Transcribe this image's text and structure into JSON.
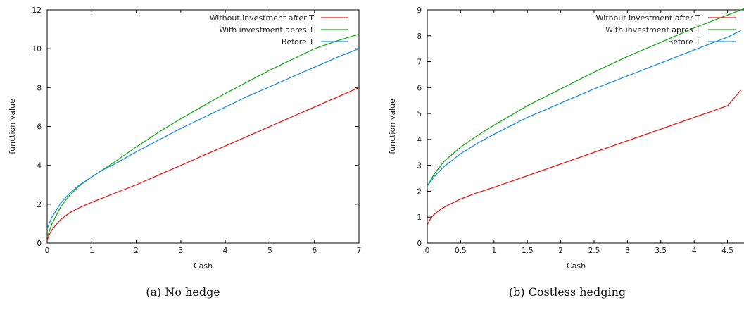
{
  "chart_data": [
    {
      "type": "line",
      "caption": "(a) No hedge",
      "xlabel": "Cash",
      "ylabel": "function value",
      "xlim": [
        0,
        7
      ],
      "ylim": [
        0,
        12
      ],
      "xticks": [
        "0",
        "1",
        "2",
        "3",
        "4",
        "5",
        "6",
        "7"
      ],
      "yticks": [
        "0",
        "2",
        "4",
        "6",
        "8",
        "10",
        "12"
      ],
      "grid": false,
      "legend_position": "top-right",
      "series": [
        {
          "name": "Without  investment after T",
          "color": "#e41a1c",
          "x": [
            0,
            0.05,
            0.1,
            0.2,
            0.3,
            0.5,
            0.7,
            1,
            1.5,
            2,
            2.5,
            3,
            3.5,
            4,
            4.5,
            5,
            5.5,
            6,
            6.5,
            7
          ],
          "y": [
            0.15,
            0.45,
            0.65,
            0.95,
            1.2,
            1.55,
            1.8,
            2.1,
            2.55,
            3.0,
            3.5,
            4.0,
            4.5,
            5.0,
            5.5,
            6.0,
            6.5,
            7.0,
            7.5,
            8.0
          ]
        },
        {
          "name": "With investment apres T",
          "color": "#1aab1a",
          "x": [
            0,
            0.1,
            0.3,
            0.5,
            0.7,
            1,
            1.2,
            1.5,
            2,
            2.5,
            3,
            3.5,
            4,
            4.5,
            5,
            5.5,
            6,
            6.5,
            7
          ],
          "y": [
            0.3,
            0.95,
            1.85,
            2.45,
            2.9,
            3.4,
            3.7,
            4.15,
            4.95,
            5.7,
            6.4,
            7.05,
            7.7,
            8.3,
            8.9,
            9.45,
            10.0,
            10.4,
            10.75
          ]
        },
        {
          "name": "Before T",
          "color": "#1f8fe0",
          "x": [
            0,
            0.1,
            0.3,
            0.5,
            0.7,
            1,
            1.2,
            1.5,
            2,
            2.5,
            3,
            3.5,
            4,
            4.5,
            5,
            5.5,
            6,
            6.5,
            7
          ],
          "y": [
            0.75,
            1.3,
            2.05,
            2.55,
            2.95,
            3.4,
            3.7,
            4.05,
            4.7,
            5.3,
            5.9,
            6.45,
            7.0,
            7.55,
            8.05,
            8.55,
            9.05,
            9.55,
            10.0
          ]
        }
      ]
    },
    {
      "type": "line",
      "caption": "(b) Costless hedging",
      "xlabel": "Cash",
      "ylabel": "function value",
      "xlim": [
        0,
        4.8
      ],
      "ylim": [
        0,
        9
      ],
      "xticks": [
        "0",
        "0.5",
        "1",
        "1.5",
        "2",
        "2.5",
        "3",
        "3.5",
        "4",
        "4.5"
      ],
      "yticks": [
        "0",
        "1",
        "2",
        "3",
        "4",
        "5",
        "6",
        "7",
        "8",
        "9"
      ],
      "grid": false,
      "legend_position": "top-right",
      "series": [
        {
          "name": "Without  investment after T",
          "color": "#e41a1c",
          "x": [
            0,
            0.05,
            0.1,
            0.2,
            0.3,
            0.5,
            0.7,
            1,
            1.5,
            2,
            2.5,
            3,
            3.5,
            4,
            4.5,
            4.7
          ],
          "y": [
            0.7,
            0.95,
            1.1,
            1.3,
            1.45,
            1.7,
            1.9,
            2.15,
            2.6,
            3.05,
            3.5,
            3.95,
            4.4,
            4.85,
            5.3,
            5.9
          ]
        },
        {
          "name": "With investment apres T",
          "color": "#1aab1a",
          "x": [
            0,
            0.1,
            0.25,
            0.5,
            0.75,
            1,
            1.5,
            2,
            2.5,
            3,
            3.5,
            4,
            4.5,
            4.75
          ],
          "y": [
            2.2,
            2.65,
            3.15,
            3.7,
            4.15,
            4.55,
            5.3,
            5.95,
            6.6,
            7.2,
            7.75,
            8.3,
            8.8,
            9.05
          ]
        },
        {
          "name": "Before T",
          "color": "#1f8fe0",
          "x": [
            0,
            0.1,
            0.25,
            0.5,
            0.75,
            1,
            1.5,
            2,
            2.5,
            3,
            3.5,
            4,
            4.5,
            4.7
          ],
          "y": [
            2.2,
            2.55,
            2.95,
            3.45,
            3.85,
            4.2,
            4.85,
            5.4,
            5.95,
            6.45,
            6.95,
            7.45,
            7.95,
            8.2
          ]
        }
      ]
    }
  ]
}
